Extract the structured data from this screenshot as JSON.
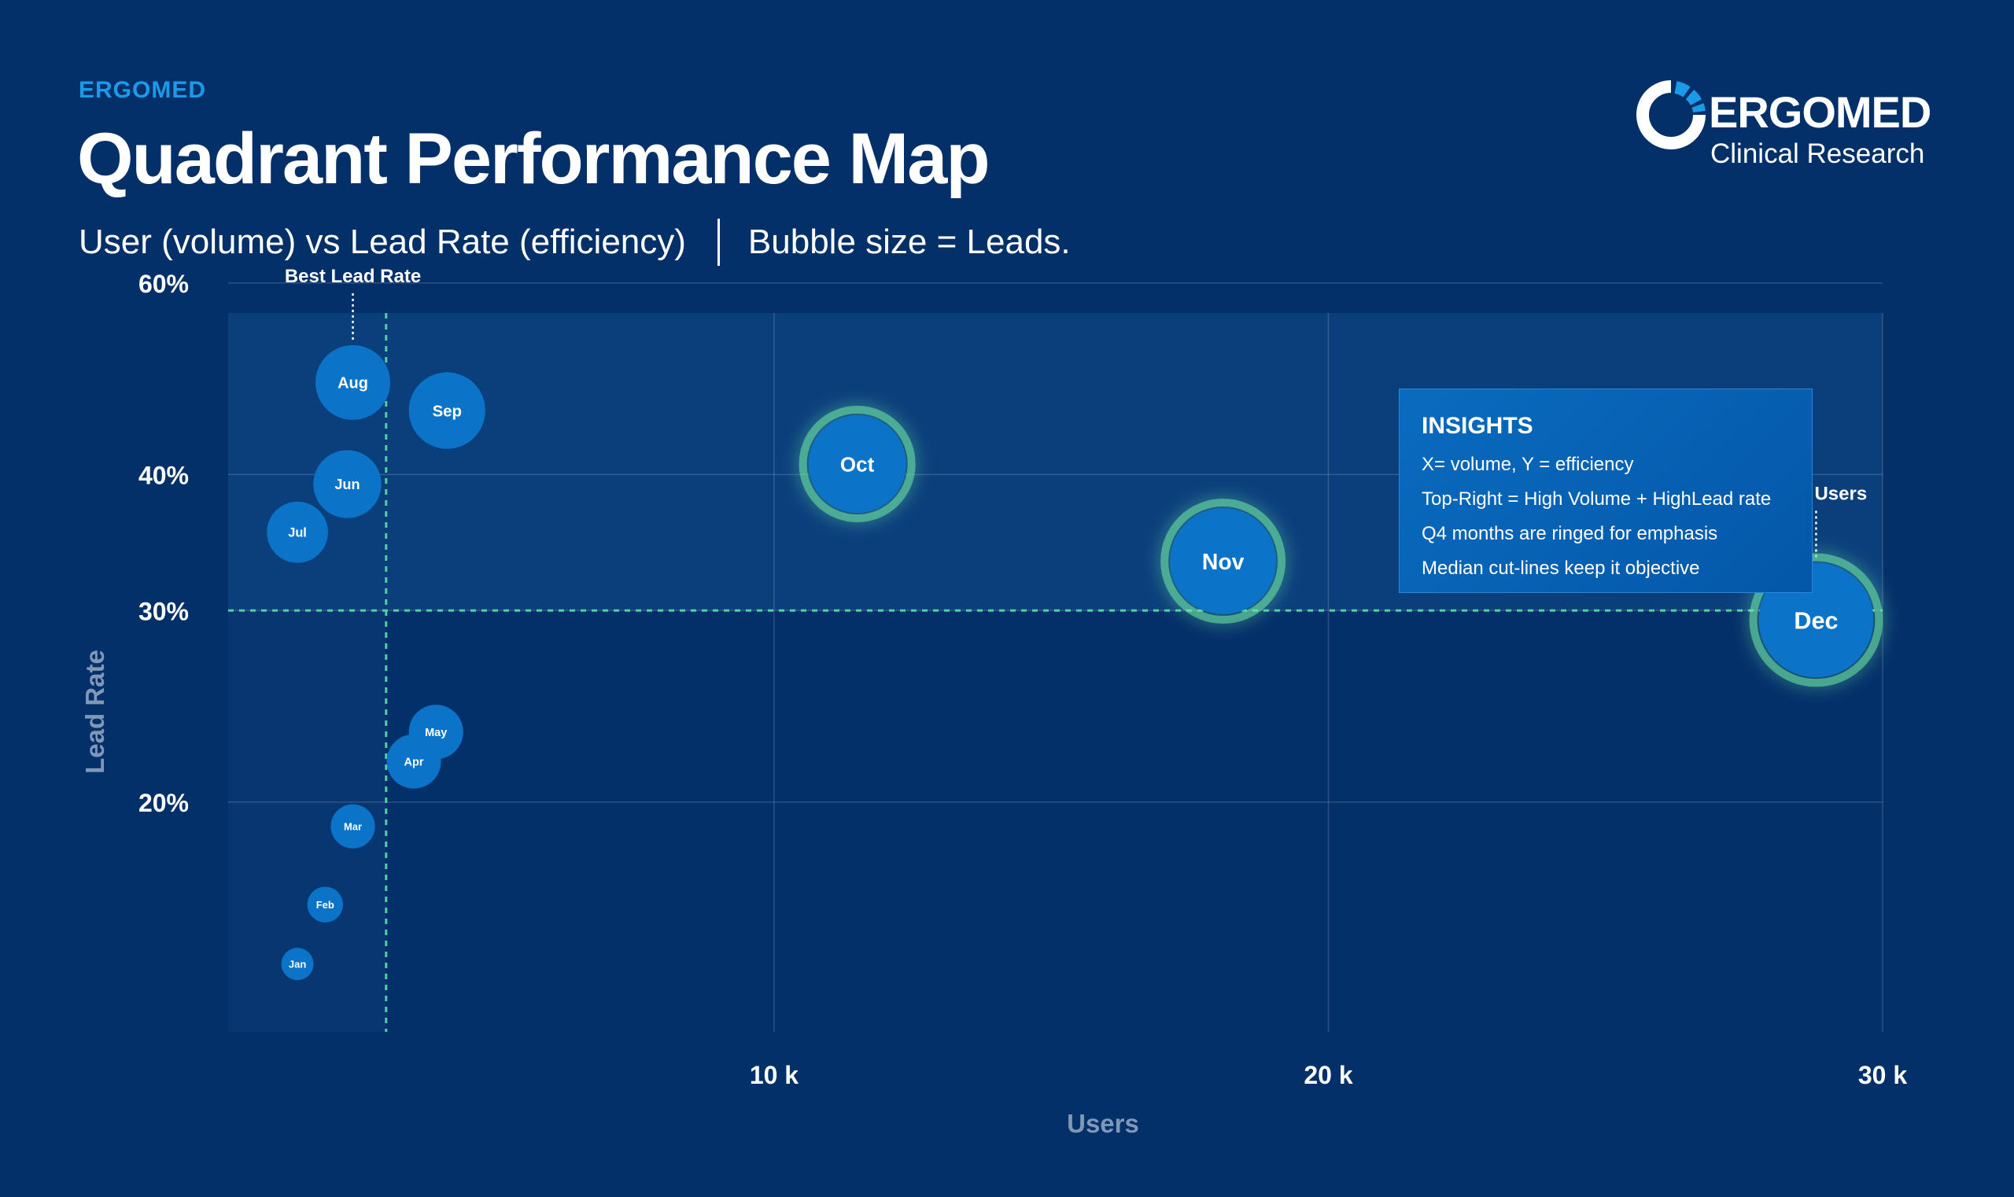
{
  "header": {
    "eyebrow": "ERGOMED",
    "title": "Quadrant Performance Map",
    "subtitle_left": "User (volume) vs Lead Rate (efficiency)",
    "subtitle_right": "Bubble size = Leads."
  },
  "logo": {
    "brand": "ERGOMED",
    "tagline": "Clinical Research"
  },
  "insights": {
    "title": "INSIGHTS",
    "lines": [
      "X= volume, Y = efficiency",
      "Top-Right = High Volume + HighLead rate",
      "Q4 months are ringed for emphasis",
      "Median cut-lines keep it objective"
    ]
  },
  "colors": {
    "background": "#04306a",
    "plot_upper": "#0b3f7c",
    "plot_lower": "#073670",
    "bubble": "#0b74c8",
    "highlight_glow": "#6fe7a4",
    "median_line": "#4fd1a5",
    "accent": "#1a9ae8"
  },
  "chart_data": {
    "type": "scatter",
    "xlabel": "Users",
    "ylabel": "Lead Rate",
    "x_ticks": [
      10000,
      20000,
      30000
    ],
    "x_tick_labels": [
      "10 k",
      "20 k",
      "30 k"
    ],
    "y_ticks": [
      0.2,
      0.3,
      0.4,
      0.6
    ],
    "y_tick_labels": [
      "20%",
      "30%",
      "40%",
      "60%"
    ],
    "xlim": [
      150,
      30000
    ],
    "ylim": [
      0.123,
      0.563
    ],
    "median_users": 3000,
    "median_lead_rate": 0.3,
    "grid": true,
    "points": [
      {
        "label": "Jan",
        "users": 1400,
        "lead_rate": 0.142,
        "size": 0.38,
        "highlight": false
      },
      {
        "label": "Feb",
        "users": 1900,
        "lead_rate": 0.161,
        "size": 0.42,
        "highlight": false
      },
      {
        "label": "Mar",
        "users": 2400,
        "lead_rate": 0.19,
        "size": 0.52,
        "highlight": false
      },
      {
        "label": "Apr",
        "users": 3500,
        "lead_rate": 0.218,
        "size": 0.64,
        "highlight": false
      },
      {
        "label": "May",
        "users": 3900,
        "lead_rate": 0.232,
        "size": 0.64,
        "highlight": false
      },
      {
        "label": "Jun",
        "users": 2300,
        "lead_rate": 0.392,
        "size": 0.8,
        "highlight": false
      },
      {
        "label": "Jul",
        "users": 1400,
        "lead_rate": 0.354,
        "size": 0.72,
        "highlight": false
      },
      {
        "label": "Aug",
        "users": 2400,
        "lead_rate": 0.486,
        "size": 0.88,
        "highlight": false
      },
      {
        "label": "Sep",
        "users": 4100,
        "lead_rate": 0.458,
        "size": 0.9,
        "highlight": false
      },
      {
        "label": "Oct",
        "users": 11500,
        "lead_rate": 0.409,
        "size": 1.15,
        "highlight": true
      },
      {
        "label": "Nov",
        "users": 18100,
        "lead_rate": 0.333,
        "size": 1.25,
        "highlight": true
      },
      {
        "label": "Dec",
        "users": 28800,
        "lead_rate": 0.294,
        "size": 1.35,
        "highlight": true
      }
    ],
    "annotations": [
      {
        "text": "Best Lead Rate",
        "target": "Aug"
      },
      {
        "text": "Peak Users",
        "target": "Dec"
      }
    ]
  }
}
